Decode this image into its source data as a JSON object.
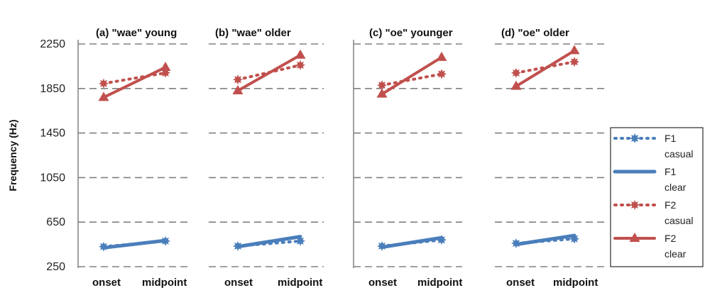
{
  "chart_data": {
    "type": "line",
    "ylabel": "Frequency (Hz)",
    "ylim": [
      250,
      2250
    ],
    "yticks": [
      "2250",
      "1850",
      "1450",
      "1050",
      "650",
      "250"
    ],
    "categories": [
      "onset",
      "midpoint"
    ],
    "grid": true,
    "legend_position": "right",
    "colors": {
      "blue": "#4a7ebb",
      "red": "#c0504d"
    },
    "legend": [
      {
        "line1": "F1",
        "line2": "casual",
        "color": "#4a7ebb",
        "style": "dotted",
        "marker": "star"
      },
      {
        "line1": "F1",
        "line2": "clear",
        "color": "#4a7ebb",
        "style": "solid",
        "marker": "none"
      },
      {
        "line1": "F2",
        "line2": "casual",
        "color": "#c0504d",
        "style": "dotted",
        "marker": "star"
      },
      {
        "line1": "F2",
        "line2": "clear",
        "color": "#c0504d",
        "style": "solid",
        "marker": "triangle"
      }
    ],
    "panels": [
      {
        "title": "(a) \"wae\" young",
        "x_labels": [
          "onset",
          "midpoint"
        ],
        "series": [
          {
            "name": "F1 casual",
            "values": [
              430,
              480
            ]
          },
          {
            "name": "F1 clear",
            "values": [
              420,
              485
            ]
          },
          {
            "name": "F2 casual",
            "values": [
              1895,
              1990
            ]
          },
          {
            "name": "F2 clear",
            "values": [
              1770,
              2040
            ]
          }
        ]
      },
      {
        "title": "(b) \"wae\"  older",
        "x_labels": [
          "onset",
          "midpoint"
        ],
        "series": [
          {
            "name": "F1 casual",
            "values": [
              435,
              480
            ]
          },
          {
            "name": "F1 clear",
            "values": [
              430,
              520
            ]
          },
          {
            "name": "F2 casual",
            "values": [
              1930,
              2060
            ]
          },
          {
            "name": "F2 clear",
            "values": [
              1830,
              2150
            ]
          }
        ]
      },
      {
        "title": "(c) \"oe\" younger",
        "x_labels": [
          "onset",
          "midpoint"
        ],
        "series": [
          {
            "name": "F1 casual",
            "values": [
              435,
              490
            ]
          },
          {
            "name": "F1 clear",
            "values": [
              425,
              510
            ]
          },
          {
            "name": "F2 casual",
            "values": [
              1880,
              1980
            ]
          },
          {
            "name": "F2 clear",
            "values": [
              1800,
              2130
            ]
          }
        ]
      },
      {
        "title": "(d) \"oe\"  older",
        "x_labels": [
          "onset",
          "midpoint"
        ],
        "series": [
          {
            "name": "F1 casual",
            "values": [
              460,
              500
            ]
          },
          {
            "name": "F1 clear",
            "values": [
              450,
              530
            ]
          },
          {
            "name": "F2 casual",
            "values": [
              1990,
              2090
            ]
          },
          {
            "name": "F2 clear",
            "values": [
              1870,
              2190
            ]
          }
        ]
      }
    ]
  }
}
